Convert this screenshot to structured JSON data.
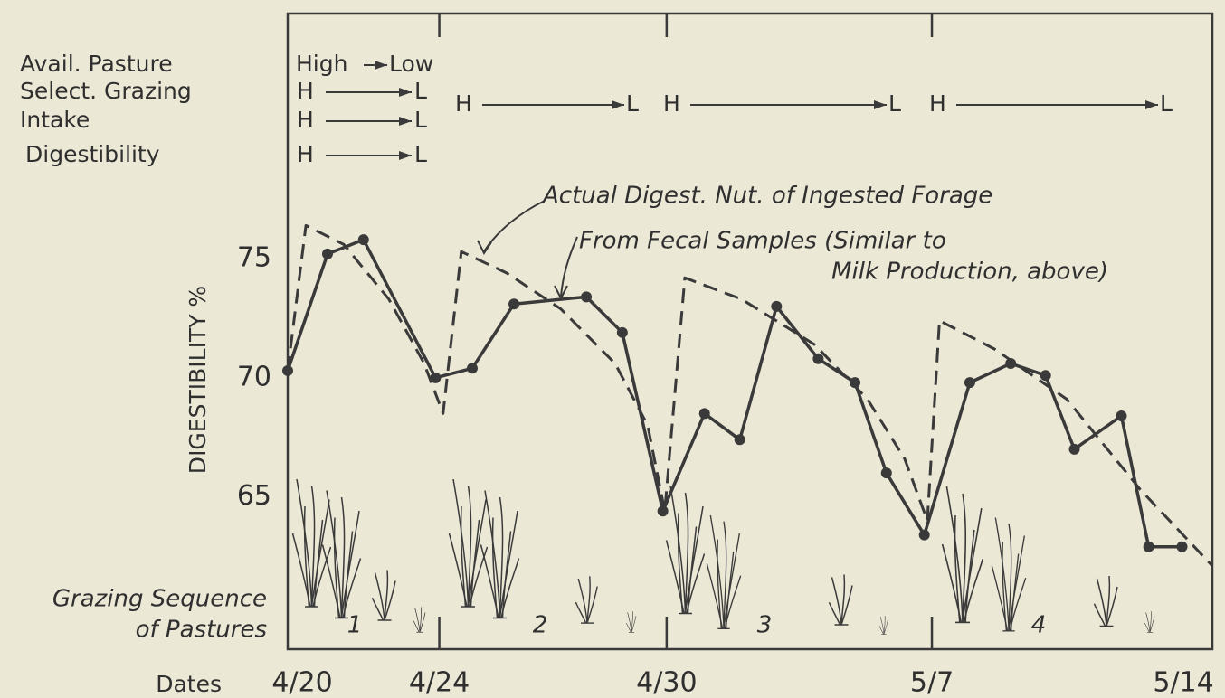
{
  "chart_data": {
    "type": "line",
    "ylabel": "DIGESTIBILITY %",
    "xlabel": "Dates",
    "xlim": [
      0,
      24.4
    ],
    "ylim": [
      58.6,
      85.3
    ],
    "xticks": [
      {
        "value": 0,
        "label": "4/20"
      },
      {
        "value": 4,
        "label": "4/24"
      },
      {
        "value": 10,
        "label": "4/30"
      },
      {
        "value": 17,
        "label": "5/7"
      },
      {
        "value": 24,
        "label": "5/14"
      }
    ],
    "yticks": [
      65,
      70,
      75
    ],
    "indicators": [
      "Avail. Pasture",
      "Select. Grazing",
      "Intake",
      "Digestibility"
    ],
    "first_period": [
      [
        "High",
        "Low"
      ],
      [
        "H",
        "L"
      ],
      [
        "H",
        "L"
      ],
      [
        "H",
        "L"
      ]
    ],
    "later_periods": [
      [
        "H",
        "L"
      ],
      [
        "H",
        "L"
      ],
      [
        "H",
        "L"
      ]
    ],
    "annotations": [
      "Actual Digest. Nut. of Ingested Forage",
      "From Fecal Samples (Similar to",
      "Milk Production, above)"
    ],
    "pasture_label": [
      "Grazing Sequence",
      "of Pastures"
    ],
    "pastures": [
      "1",
      "2",
      "3",
      "4"
    ],
    "series": [
      {
        "color": "#3a3a3a",
        "dashed": false,
        "markers": true,
        "x": [
          0,
          1.05,
          2.0,
          3.9,
          4.87,
          5.97,
          7.88,
          8.83,
          9.9,
          11.0,
          11.93,
          12.9,
          14.0,
          14.97,
          15.8,
          16.8,
          18.0,
          19.08,
          20.0,
          20.76,
          22.0,
          22.72,
          23.6
        ],
        "values": [
          70.3,
          75.2,
          75.8,
          70.0,
          70.4,
          73.1,
          73.4,
          71.9,
          64.4,
          68.5,
          67.4,
          73.0,
          70.8,
          69.8,
          66.0,
          63.4,
          69.8,
          70.6,
          70.1,
          67.0,
          68.4,
          62.9,
          62.9
        ]
      },
      {
        "color": "#3a3a3a",
        "dashed": true,
        "markers": false,
        "x": [
          0,
          0.48,
          1.48,
          2.67,
          3.6,
          4.1,
          4.58,
          5.78,
          7.2,
          8.64,
          9.5,
          9.95,
          10.48,
          11.98,
          13.9,
          15.3,
          16.28,
          16.88,
          17.2,
          18.66,
          20.56,
          22.5,
          24.4
        ],
        "values": [
          70.3,
          76.4,
          75.6,
          73.3,
          70.6,
          68.5,
          75.3,
          74.4,
          72.9,
          70.6,
          68.0,
          64.4,
          74.2,
          73.3,
          71.4,
          69.1,
          66.6,
          64.0,
          72.4,
          71.2,
          69.1,
          65.3,
          62.1
        ]
      }
    ]
  }
}
